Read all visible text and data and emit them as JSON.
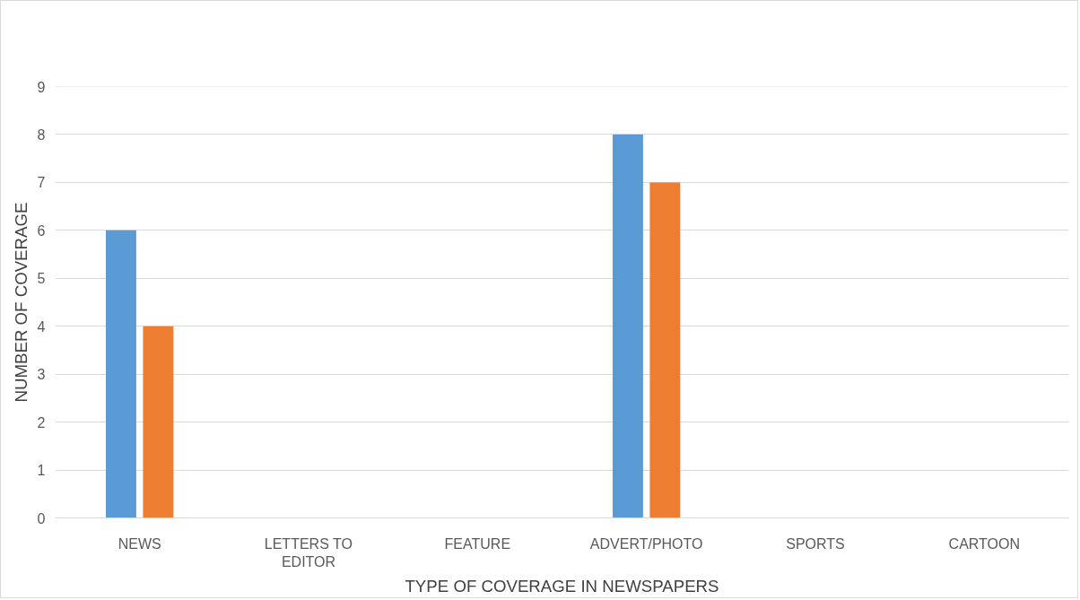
{
  "chart_data": {
    "type": "bar",
    "xlabel": "TYPE OF COVERAGE IN NEWSPAPERS",
    "ylabel": "NUMBER OF COVERAGE",
    "categories": [
      "NEWS",
      "LETTERS TO EDITOR",
      "FEATURE",
      "ADVERT/PHOTO",
      "SPORTS",
      "CARTOON"
    ],
    "series": [
      {
        "color": "#5b9bd5",
        "values": [
          6,
          null,
          null,
          8,
          null,
          null
        ]
      },
      {
        "color": "#ed7d31",
        "values": [
          4,
          null,
          null,
          7,
          null,
          null
        ]
      }
    ],
    "ylim": [
      0,
      9
    ],
    "yticks": [
      0,
      1,
      2,
      3,
      4,
      5,
      6,
      7,
      8,
      9
    ],
    "grid": "y"
  }
}
